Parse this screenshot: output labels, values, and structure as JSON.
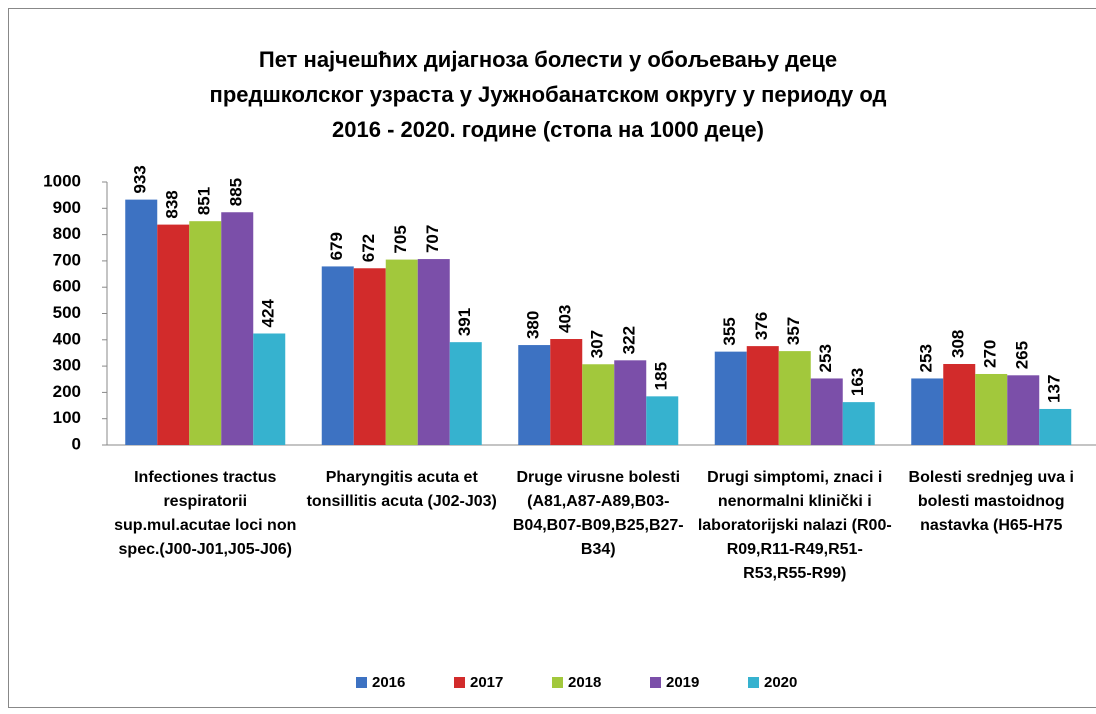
{
  "chart_data": {
    "type": "bar",
    "title": "Пет најчешћих дијагноза болести у обољевању деце предшколског узраста у Јужнобанатском округу у периоду од 2016 - 2020. године (стопа на 1000 деце)",
    "categories": [
      "Infectiones tractus respiratorii sup.mul.acutae loci non spec.(J00-J01,J05-J06)",
      "Pharyngitis acuta et tonsillitis acuta (J02-J03)",
      "Druge virusne bolesti (A81,A87-A89,B03-B04,B07-B09,B25,B27-B34)",
      "Drugi simptomi, znaci i nenormalni klinički i laboratorijski nalazi (R00-R09,R11-R49,R51-R53,R55-R99)",
      "Bolesti srednjeg uva i bolesti mastoidnog nastavka (H65-H75"
    ],
    "series": [
      {
        "name": "2016",
        "color": "#3d72c2",
        "values": [
          933,
          679,
          380,
          355,
          253
        ]
      },
      {
        "name": "2017",
        "color": "#d22b2b",
        "values": [
          838,
          672,
          403,
          376,
          308
        ]
      },
      {
        "name": "2018",
        "color": "#a2c83c",
        "values": [
          851,
          705,
          307,
          357,
          270
        ]
      },
      {
        "name": "2019",
        "color": "#7b4fa9",
        "values": [
          885,
          707,
          322,
          253,
          265
        ]
      },
      {
        "name": "2020",
        "color": "#36b2cf",
        "values": [
          424,
          391,
          185,
          163,
          137
        ]
      }
    ],
    "ylim": [
      0,
      1000
    ],
    "yticks": [
      0,
      100,
      200,
      300,
      400,
      500,
      600,
      700,
      800,
      900,
      1000
    ],
    "legend": "bottom"
  }
}
